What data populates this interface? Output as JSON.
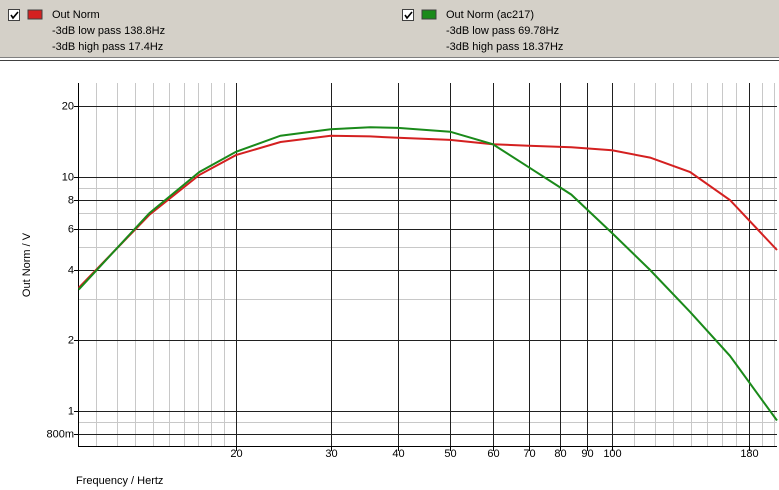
{
  "chart_data": {
    "type": "line",
    "x_label": "Frequency / Hertz",
    "y_label": "Out Norm / V",
    "log_x": true,
    "log_y": true,
    "xlim": [
      10.17,
      202.6
    ],
    "ylim": [
      0.708,
      25.2
    ],
    "xticks": [
      20,
      30,
      40,
      50,
      60,
      70,
      80,
      90,
      100,
      180
    ],
    "xgrid_minor": [
      11,
      12,
      13,
      14,
      15,
      16,
      17,
      18,
      19,
      110,
      120,
      130,
      140,
      150,
      160,
      170,
      190,
      200
    ],
    "yticks": [
      {
        "value": 0.8,
        "label": "800m"
      },
      1,
      2,
      4,
      6,
      8,
      10,
      20
    ],
    "ygrid_minor": [
      0.9,
      3,
      5,
      7,
      9
    ],
    "grid": true,
    "x": [
      10.2,
      13.8,
      17.1,
      20,
      24.2,
      30,
      35.5,
      40,
      50,
      60,
      70,
      84,
      100,
      117.7,
      139.7,
      165.6,
      202.6
    ],
    "series": [
      {
        "name": "Out Norm",
        "color": "#d42020",
        "notes": [
          "-3dB low pass  138.8Hz",
          "-3dB high pass  17.4Hz"
        ],
        "values": [
          3.36,
          6.88,
          10.2,
          12.4,
          14.1,
          15.0,
          14.9,
          14.7,
          14.4,
          13.8,
          13.6,
          13.4,
          13.0,
          12.1,
          10.5,
          7.97,
          4.87
        ]
      },
      {
        "name": "Out Norm (ac217)",
        "color": "#1a8a1a",
        "notes": [
          "-3dB low pass  69.78Hz",
          "-3dB high pass  18.37Hz"
        ],
        "values": [
          3.3,
          7.0,
          10.5,
          12.8,
          15.0,
          16.0,
          16.3,
          16.2,
          15.6,
          13.8,
          11.0,
          8.4,
          5.76,
          4.0,
          2.65,
          1.72,
          0.91
        ]
      }
    ]
  }
}
